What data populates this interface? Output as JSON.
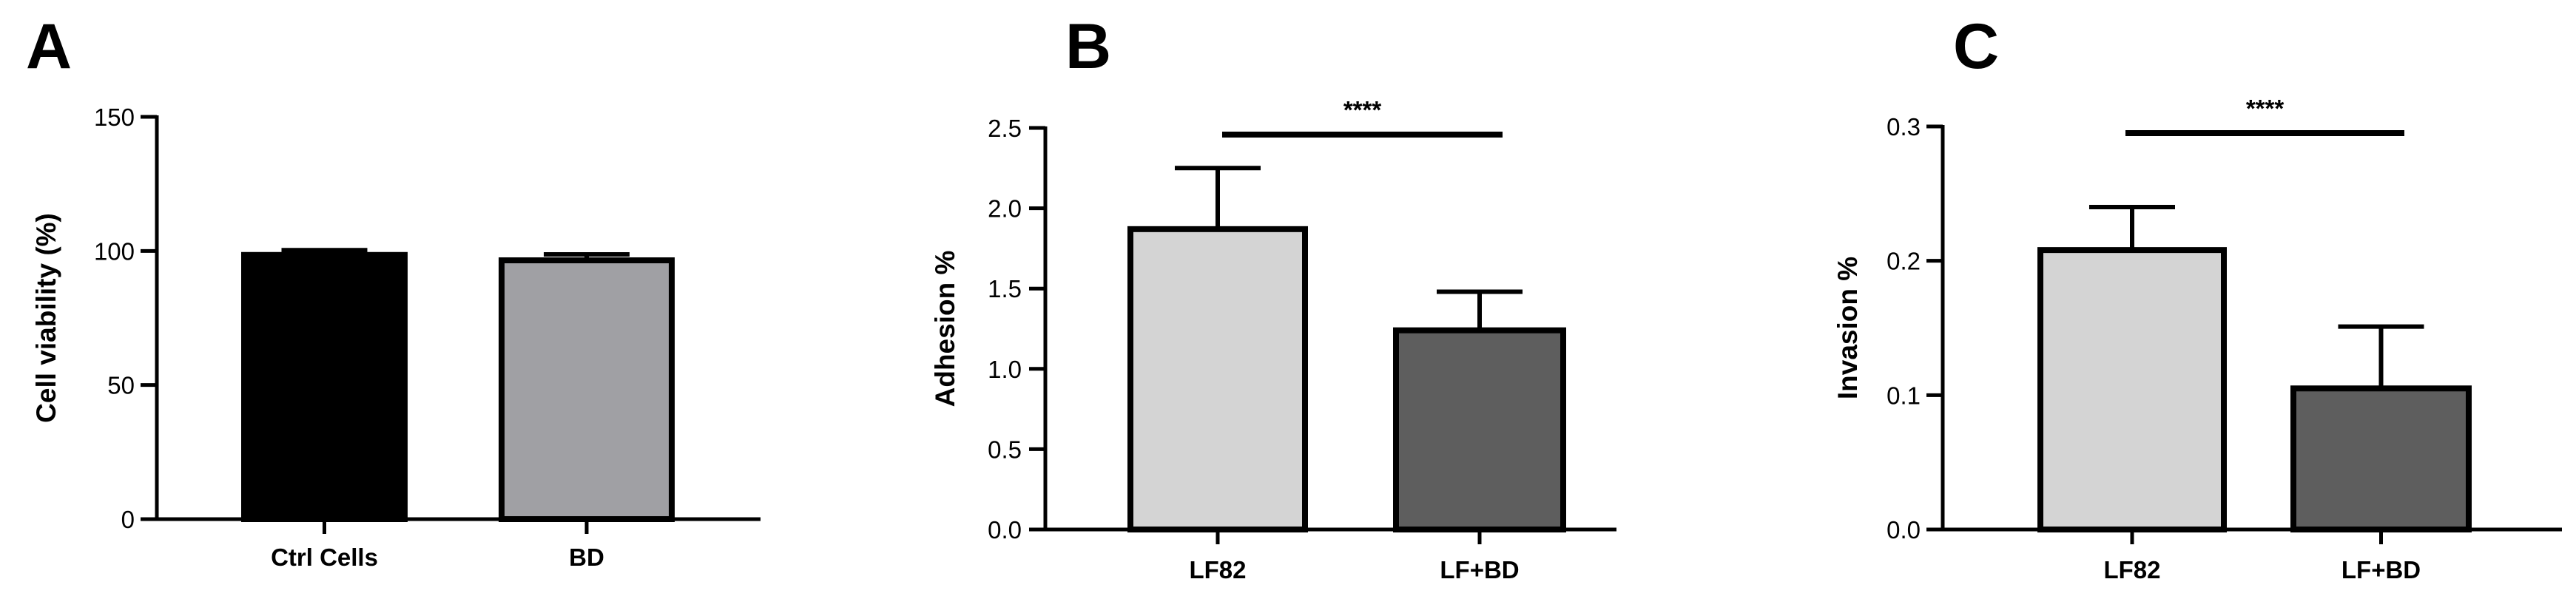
{
  "chart_data": [
    {
      "panel": "A",
      "type": "bar",
      "categories": [
        "Ctrl Cells",
        "BD"
      ],
      "values": [
        98.5,
        96.5
      ],
      "errors": [
        1.8,
        2.2
      ],
      "colors": [
        "#000000",
        "#a0a0a4"
      ],
      "ylabel": "Cell viability (%)",
      "ylim": [
        0,
        150
      ],
      "yticks": [
        0,
        50,
        100,
        150
      ],
      "ytick_labels": [
        "0",
        "50",
        "100",
        "150"
      ],
      "grid": false,
      "significance": null
    },
    {
      "panel": "B",
      "type": "bar",
      "categories": [
        "LF82",
        "LF+BD"
      ],
      "values": [
        1.87,
        1.24
      ],
      "errors": [
        0.38,
        0.24
      ],
      "colors": [
        "#d4d4d4",
        "#5e5e5e"
      ],
      "ylabel": "Adhesion %",
      "ylim": [
        0,
        2.5
      ],
      "yticks": [
        0,
        0.5,
        1.0,
        1.5,
        2.0,
        2.5
      ],
      "ytick_labels": [
        "0.0",
        "0.5",
        "1.0",
        "1.5",
        "2.0",
        "2.5"
      ],
      "grid": false,
      "significance": "****"
    },
    {
      "panel": "C",
      "type": "bar",
      "categories": [
        "LF82",
        "LF+BD"
      ],
      "values": [
        0.208,
        0.105
      ],
      "errors": [
        0.032,
        0.046
      ],
      "colors": [
        "#d4d4d4",
        "#5e5e5e"
      ],
      "ylabel": "Invasion %",
      "ylim": [
        0,
        0.3
      ],
      "yticks": [
        0,
        0.1,
        0.2,
        0.3
      ],
      "ytick_labels": [
        "0.0",
        "0.1",
        "0.2",
        "0.3"
      ],
      "grid": false,
      "significance": "****"
    }
  ]
}
